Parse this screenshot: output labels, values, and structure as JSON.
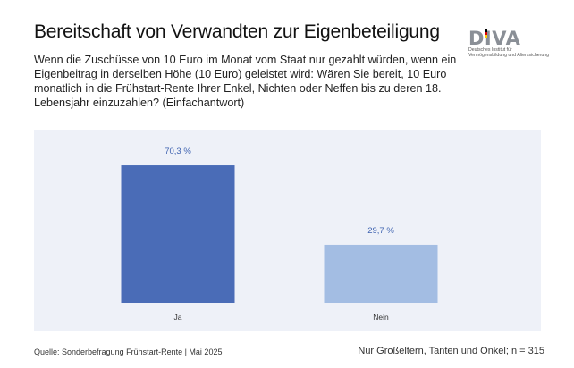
{
  "header": {
    "title": "Bereitschaft von Verwandten zur Eigenbeteiligung",
    "subtitle": "Wenn die Zuschüsse von 10 Euro im Monat vom Staat nur gezahlt würden, wenn ein Eigenbeitrag in derselben Höhe (10 Euro) geleistet wird: Wären Sie bereit, 10 Euro monatlich in die Frühstart-Rente Ihrer Enkel, Nichten oder Neffen bis zu deren 18. Lebensjahr einzuzahlen? (Einfachantwort)"
  },
  "logo": {
    "name": "DIVA",
    "line1": "Deutsches Institut für",
    "line2": "Vermögensbildung und Alterssicherung"
  },
  "chart_data": {
    "type": "bar",
    "categories": [
      "Ja",
      "Nein"
    ],
    "values": [
      70.3,
      29.7
    ],
    "value_labels": [
      "70,3 %",
      "29,7 %"
    ],
    "bar_colors": [
      "#4a6cb7",
      "#a3bde3"
    ],
    "label_color": "#3f63b0",
    "background": "#eef1f8",
    "ylim": [
      0,
      100
    ],
    "grid": false,
    "legend": "none"
  },
  "footer": {
    "source": "Quelle: Sonderbefragung Frühstart-Rente | Mai 2025",
    "note": "Nur Großeltern, Tanten und Onkel; n = 315"
  }
}
